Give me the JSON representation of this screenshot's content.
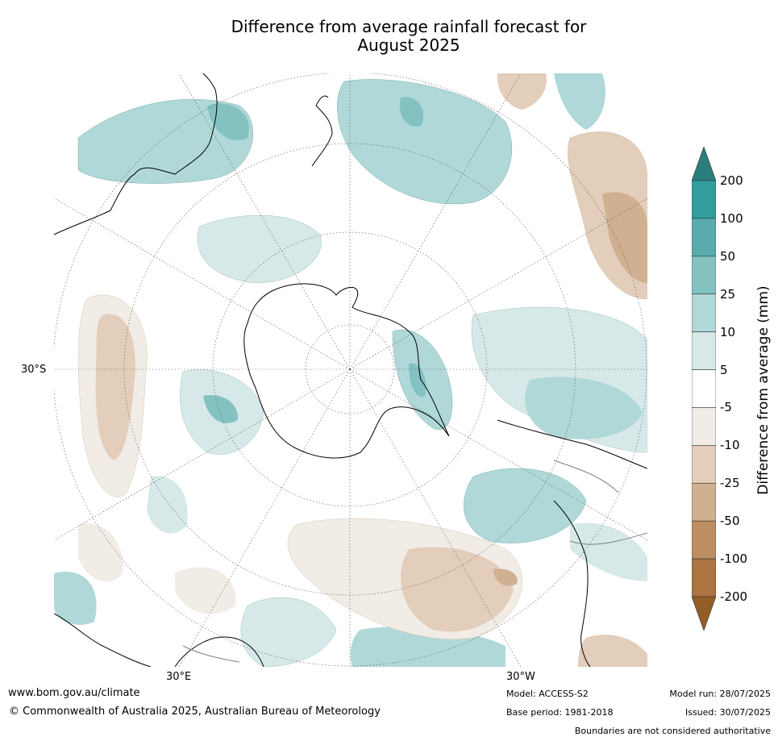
{
  "title_line1": "Difference from average rainfall forecast for",
  "title_line2": "August 2025",
  "map": {
    "projection": "south-polar-stereographic",
    "labels": {
      "lat_30s": "30°S",
      "lon_30e": "30°E",
      "lon_30w": "30°W"
    },
    "land_outline_color": "#000000",
    "boundary_color": "#808080"
  },
  "colorbar": {
    "title": "Difference from average (mm)",
    "ticks": [
      "200",
      "100",
      "50",
      "25",
      "10",
      "5",
      "-5",
      "-10",
      "-25",
      "-50",
      "-100",
      "-200"
    ],
    "colors": [
      "#2a7e7e",
      "#339c9c",
      "#5aacac",
      "#84c2c2",
      "#b0d8d8",
      "#d6e9e8",
      "#ffffff",
      "#f1ece6",
      "#e3cdbb",
      "#cfb090",
      "#bc8e62",
      "#ab7440",
      "#935c26"
    ],
    "extend": "both"
  },
  "footer": {
    "website": "www.bom.gov.au/climate",
    "copyright": "© Commonwealth of Australia 2025, Australian Bureau of Meteorology",
    "model": "Model: ACCESS-S2",
    "base_period": "Base period: 1981-2018",
    "model_run": "Model run: 28/07/2025",
    "issued": "Issued: 30/07/2025",
    "disclaimer": "Boundaries are not considered authoritative"
  }
}
